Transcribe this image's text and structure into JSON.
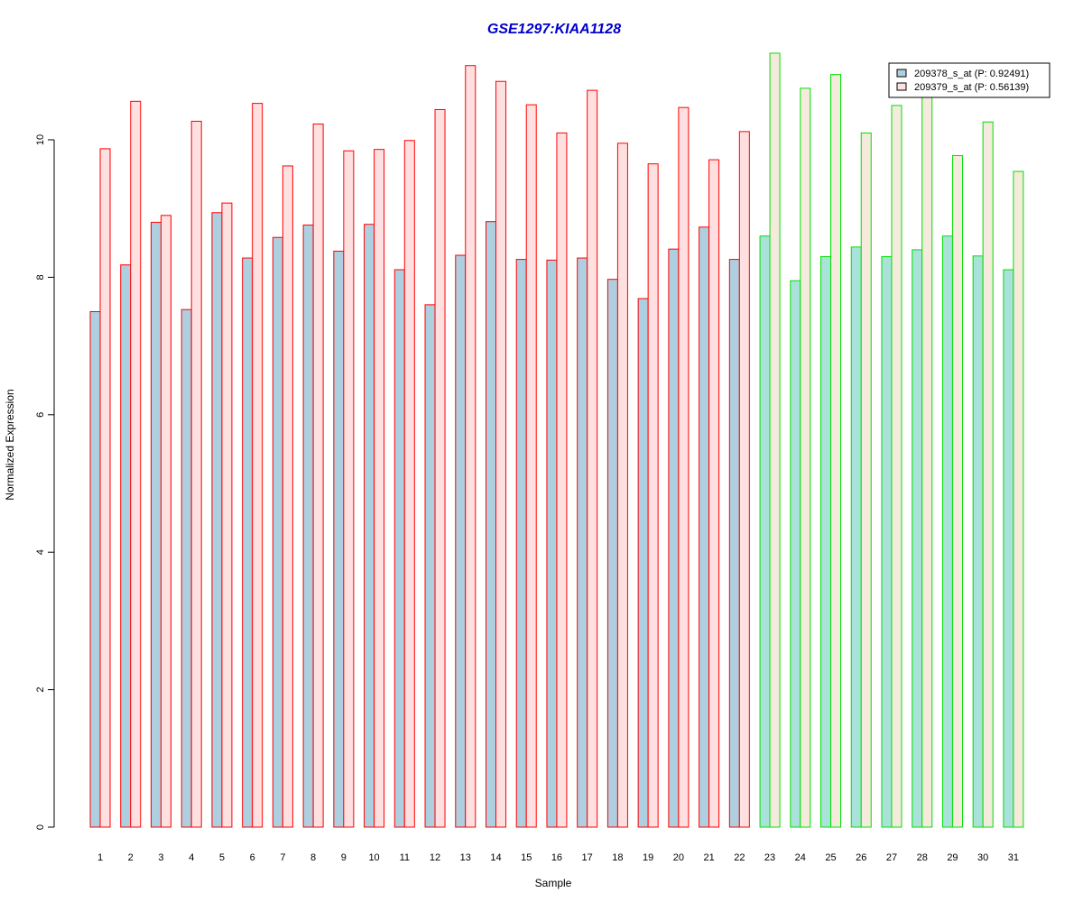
{
  "chart_data": {
    "type": "bar",
    "title": "GSE1297:KIAA1128",
    "xlabel": "Sample",
    "ylabel": "Normalized Expression",
    "ylim": [
      0,
      11.3
    ],
    "yticks": [
      "0",
      "2",
      "4",
      "6",
      "8",
      "10"
    ],
    "categories": [
      "1",
      "2",
      "3",
      "4",
      "5",
      "6",
      "7",
      "8",
      "9",
      "10",
      "11",
      "12",
      "13",
      "14",
      "15",
      "16",
      "17",
      "18",
      "19",
      "20",
      "21",
      "22",
      "23",
      "24",
      "25",
      "26",
      "27",
      "28",
      "29",
      "30",
      "31"
    ],
    "group_colors": {
      "group1_border": "#ff0000",
      "group2_border": "#00e000"
    },
    "group1_count": 22,
    "series": [
      {
        "name": "209378_s_at (P: 0.92491)",
        "fill_group1": "#aecfe0",
        "fill_group2": "#a8e2d8",
        "values": [
          7.5,
          8.18,
          8.8,
          7.53,
          8.94,
          8.28,
          8.58,
          8.76,
          8.38,
          8.77,
          8.11,
          7.6,
          8.32,
          8.81,
          8.26,
          8.25,
          8.28,
          7.97,
          7.69,
          8.41,
          8.73,
          8.26,
          8.6,
          7.95,
          8.3,
          8.44,
          8.3,
          8.4,
          8.6,
          8.31,
          8.11
        ]
      },
      {
        "name": "209379_s_at (P: 0.56139)",
        "fill_group1": "#ffe0e0",
        "fill_group2": "#f5ebdc",
        "values": [
          9.87,
          10.56,
          8.9,
          10.27,
          9.08,
          10.53,
          9.62,
          10.23,
          9.84,
          9.86,
          9.99,
          10.44,
          11.08,
          10.85,
          10.51,
          10.1,
          10.72,
          9.95,
          9.65,
          10.47,
          9.71,
          10.12,
          11.26,
          10.75,
          10.95,
          10.1,
          10.5,
          10.68,
          9.77,
          10.26,
          9.54
        ]
      }
    ],
    "legend": {
      "position": "top-right",
      "fill1": "#aecfe0",
      "fill2": "#ffe0e0"
    }
  }
}
